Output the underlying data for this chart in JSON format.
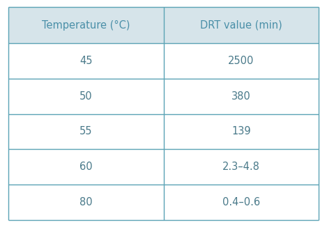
{
  "col_headers": [
    "Temperature (°C)",
    "DRT value (min)"
  ],
  "rows": [
    [
      "45",
      "2500"
    ],
    [
      "50",
      "380"
    ],
    [
      "55",
      "139"
    ],
    [
      "60",
      "2.3–4.8"
    ],
    [
      "80",
      "0.4–0.6"
    ]
  ],
  "header_bg_color": "#d6e4ea",
  "header_text_color": "#4a8fa8",
  "cell_bg_color": "#ffffff",
  "cell_text_color": "#4a7a8a",
  "border_color": "#5ba3b5",
  "header_fontsize": 10.5,
  "cell_fontsize": 10.5,
  "fig_width": 4.69,
  "fig_height": 3.26
}
